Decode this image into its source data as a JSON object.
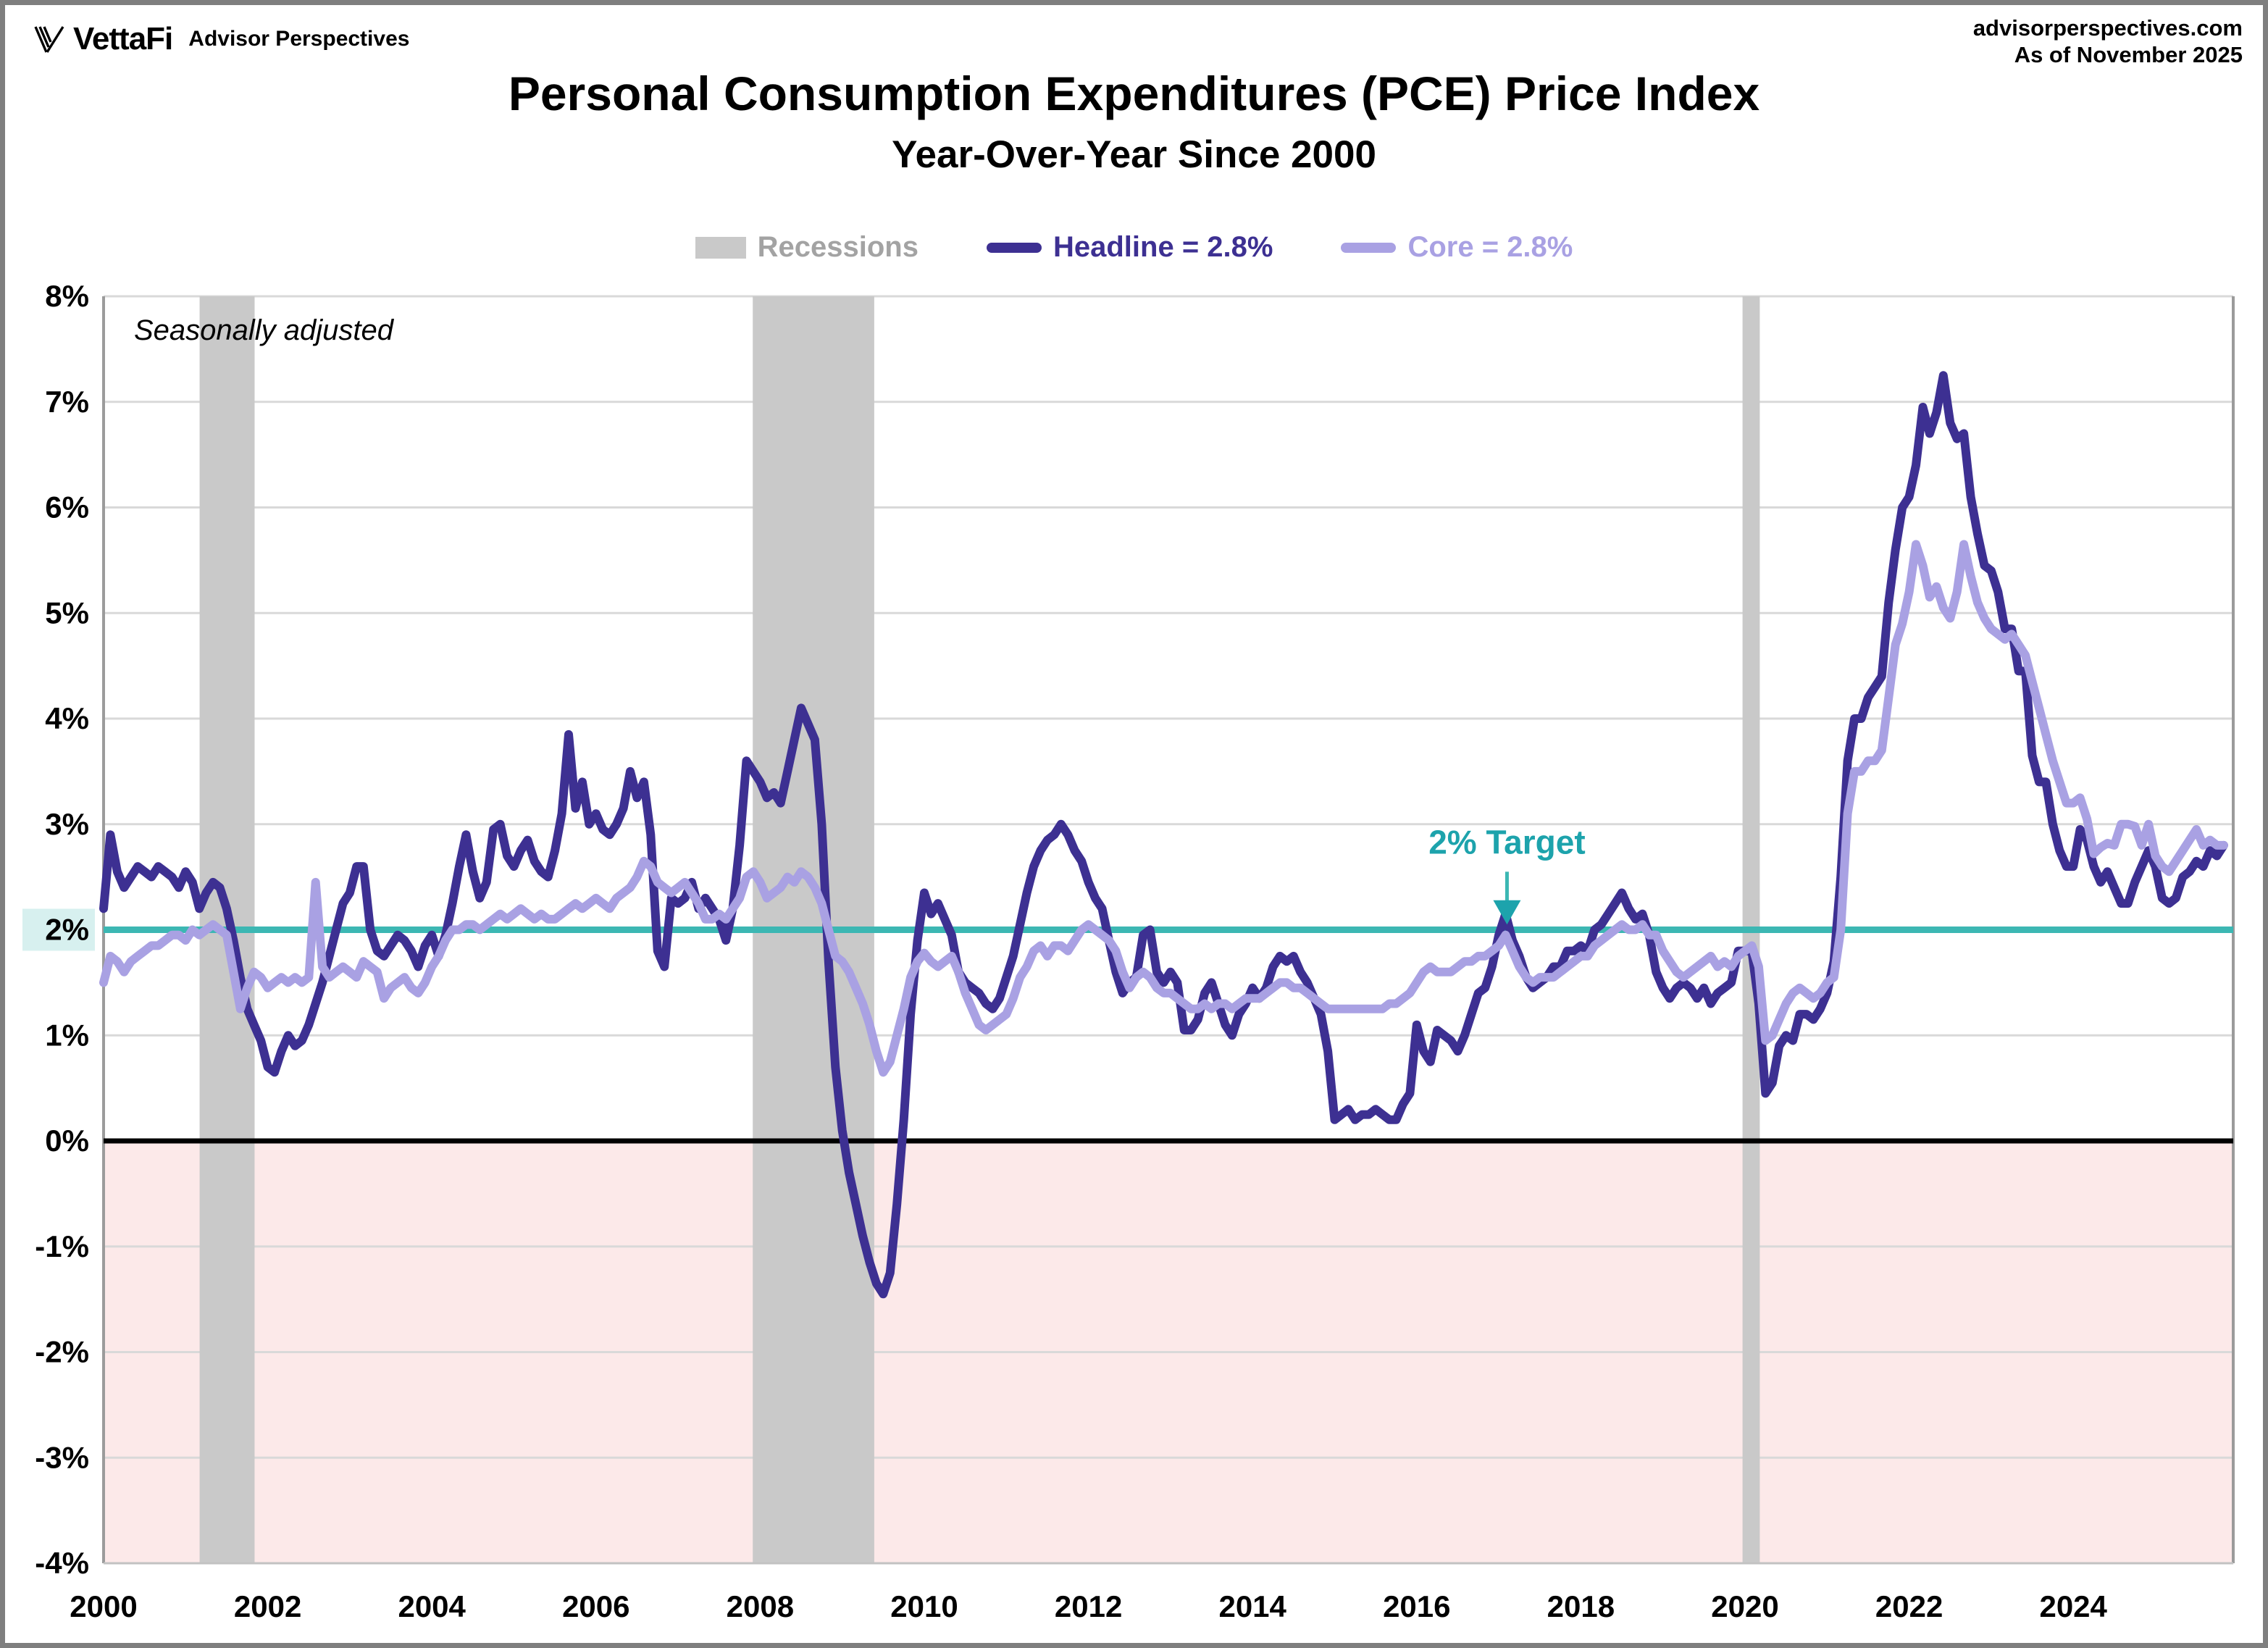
{
  "header": {
    "logo": "VettaFi",
    "logo_sub": "Advisor Perspectives",
    "site": "advisorperspectives.com",
    "as_of": "As of November 2025"
  },
  "title": "Personal Consumption Expenditures (PCE) Price Index",
  "subtitle": "Year-Over-Year Since 2000",
  "legend": {
    "recessions_label": "Recessions",
    "headline_label": "Headline = 2.8%",
    "core_label": "Core = 2.8%"
  },
  "annotations": {
    "seasonally_adjusted": "Seasonally adjusted",
    "target_label": "2% Target"
  },
  "colors": {
    "headline": "#3D3092",
    "core": "#A9A1E3",
    "target_line": "#3CB7B3",
    "target_text": "#1DA3AC",
    "target_label_bg": "#D7F0EF",
    "recession_band": "#C9C9C9",
    "recessions_text": "#A3A3A3",
    "below_zero_fill": "#FCE9E9",
    "gridline": "#D9D9D9",
    "axis_border": "#9B9B9B",
    "zero_line": "#000000"
  },
  "chart_data": {
    "type": "line",
    "title": "Personal Consumption Expenditures (PCE) Price Index",
    "subtitle": "Year-Over-Year Since 2000",
    "x_start_year": 2000,
    "x_end_label": "November 2025",
    "months_total": 311,
    "ylim": [
      -4,
      8
    ],
    "grid": "horizontal-only",
    "x_ticks": [
      2000,
      2002,
      2004,
      2006,
      2008,
      2010,
      2012,
      2014,
      2016,
      2018,
      2020,
      2022,
      2024
    ],
    "y_tick_values": [
      8,
      7,
      6,
      5,
      4,
      3,
      2,
      1,
      0,
      -1,
      -2,
      -3,
      -4
    ],
    "y_tick_labels": [
      "8%",
      "7%",
      "6%",
      "5%",
      "4%",
      "3%",
      "2%",
      "1%",
      "0%",
      "-1%",
      "-2%",
      "-3%",
      "-4%"
    ],
    "target_line": {
      "value": 2,
      "label": "2% Target",
      "annotation_year": 2017.1
    },
    "recessions": [
      {
        "start": 2001.17,
        "end": 2001.84
      },
      {
        "start": 2007.91,
        "end": 2009.39
      },
      {
        "start": 2019.97,
        "end": 2020.18
      }
    ],
    "series": [
      {
        "name": "Headline",
        "legend_label": "Headline = 2.8%",
        "latest_value": 2.8,
        "color": "#3D3092",
        "monthly_by_year": [
          [
            2.2,
            2.9,
            2.55,
            2.4,
            2.5,
            2.6,
            2.55,
            2.5,
            2.6,
            2.55,
            2.5,
            2.4
          ],
          [
            2.55,
            2.45,
            2.2,
            2.35,
            2.45,
            2.4,
            2.2,
            1.9,
            1.55,
            1.25,
            1.1,
            0.95
          ],
          [
            0.7,
            0.65,
            0.85,
            1.0,
            0.9,
            0.95,
            1.1,
            1.3,
            1.5,
            1.75,
            2.0,
            2.25
          ],
          [
            2.35,
            2.6,
            2.6,
            2.0,
            1.8,
            1.75,
            1.85,
            1.95,
            1.9,
            1.8,
            1.65,
            1.85
          ],
          [
            1.95,
            1.75,
            1.95,
            2.25,
            2.6,
            2.9,
            2.55,
            2.3,
            2.45,
            2.95,
            3.0,
            2.7
          ],
          [
            2.6,
            2.75,
            2.85,
            2.65,
            2.55,
            2.5,
            2.75,
            3.1,
            3.85,
            3.15,
            3.4,
            3.0
          ],
          [
            3.1,
            2.95,
            2.9,
            3.0,
            3.15,
            3.5,
            3.25,
            3.4,
            2.9,
            1.8,
            1.65,
            2.3
          ],
          [
            2.25,
            2.3,
            2.45,
            2.2,
            2.3,
            2.2,
            2.1,
            1.9,
            2.2,
            2.8,
            3.6,
            3.5
          ],
          [
            3.4,
            3.25,
            3.3,
            3.2,
            3.5,
            3.8,
            4.1,
            3.95,
            3.8,
            3.0,
            1.7,
            0.7
          ],
          [
            0.1,
            -0.3,
            -0.6,
            -0.9,
            -1.15,
            -1.35,
            -1.45,
            -1.25,
            -0.6,
            0.2,
            1.2,
            1.9
          ],
          [
            2.35,
            2.15,
            2.25,
            2.1,
            1.95,
            1.6,
            1.5,
            1.45,
            1.4,
            1.3,
            1.25,
            1.35
          ],
          [
            1.55,
            1.75,
            2.05,
            2.35,
            2.6,
            2.75,
            2.85,
            2.9,
            3.0,
            2.9,
            2.75,
            2.65
          ],
          [
            2.45,
            2.3,
            2.2,
            1.9,
            1.6,
            1.4,
            1.5,
            1.55,
            1.95,
            2.0,
            1.6,
            1.5
          ],
          [
            1.6,
            1.5,
            1.05,
            1.05,
            1.15,
            1.4,
            1.5,
            1.3,
            1.1,
            1.0,
            1.2,
            1.3
          ],
          [
            1.45,
            1.35,
            1.45,
            1.65,
            1.75,
            1.7,
            1.75,
            1.6,
            1.5,
            1.35,
            1.2,
            0.85
          ],
          [
            0.2,
            0.25,
            0.3,
            0.2,
            0.25,
            0.25,
            0.3,
            0.25,
            0.2,
            0.2,
            0.35,
            0.45
          ],
          [
            1.1,
            0.85,
            0.75,
            1.05,
            1.0,
            0.95,
            0.85,
            1.0,
            1.2,
            1.4,
            1.45,
            1.65
          ],
          [
            1.95,
            2.15,
            1.9,
            1.75,
            1.55,
            1.45,
            1.5,
            1.55,
            1.65,
            1.65,
            1.8,
            1.8
          ],
          [
            1.85,
            1.8,
            2.0,
            2.05,
            2.15,
            2.25,
            2.35,
            2.2,
            2.1,
            2.15,
            1.95,
            1.6
          ],
          [
            1.45,
            1.35,
            1.45,
            1.5,
            1.45,
            1.35,
            1.45,
            1.3,
            1.4,
            1.45,
            1.5,
            1.8
          ],
          [
            1.8,
            1.8,
            1.3,
            0.45,
            0.55,
            0.9,
            1.0,
            0.95,
            1.2,
            1.2,
            1.15,
            1.25
          ],
          [
            1.4,
            1.7,
            2.5,
            3.6,
            4.0,
            4.0,
            4.2,
            4.3,
            4.4,
            5.1,
            5.6,
            6.0
          ],
          [
            6.1,
            6.4,
            6.95,
            6.7,
            6.9,
            7.25,
            6.8,
            6.65,
            6.7,
            6.1,
            5.75,
            5.45
          ],
          [
            5.4,
            5.2,
            4.85,
            4.85,
            4.45,
            4.45,
            3.65,
            3.4,
            3.4,
            3.0,
            2.75,
            2.6
          ],
          [
            2.6,
            2.95,
            2.85,
            2.6,
            2.45,
            2.55,
            2.4,
            2.25,
            2.25,
            2.45,
            2.6,
            2.75
          ],
          [
            2.6,
            2.3,
            2.25,
            2.3,
            2.5,
            2.55,
            2.65,
            2.6,
            2.75,
            2.7,
            2.8
          ]
        ]
      },
      {
        "name": "Core",
        "legend_label": "Core = 2.8%",
        "latest_value": 2.8,
        "color": "#A9A1E3",
        "monthly_by_year": [
          [
            1.5,
            1.75,
            1.7,
            1.6,
            1.7,
            1.75,
            1.8,
            1.85,
            1.85,
            1.9,
            1.95,
            1.95
          ],
          [
            1.9,
            2.0,
            1.95,
            2.0,
            2.05,
            2.0,
            1.95,
            1.6,
            1.25,
            1.45,
            1.6,
            1.55
          ],
          [
            1.45,
            1.5,
            1.55,
            1.5,
            1.55,
            1.5,
            1.55,
            2.45,
            1.65,
            1.55,
            1.6,
            1.65
          ],
          [
            1.6,
            1.55,
            1.7,
            1.65,
            1.6,
            1.35,
            1.45,
            1.5,
            1.55,
            1.45,
            1.4,
            1.5
          ],
          [
            1.65,
            1.75,
            1.9,
            2.0,
            2.0,
            2.05,
            2.05,
            2.0,
            2.05,
            2.1,
            2.15,
            2.1
          ],
          [
            2.15,
            2.2,
            2.15,
            2.1,
            2.15,
            2.1,
            2.1,
            2.15,
            2.2,
            2.25,
            2.2,
            2.25
          ],
          [
            2.3,
            2.25,
            2.2,
            2.3,
            2.35,
            2.4,
            2.5,
            2.65,
            2.6,
            2.45,
            2.4,
            2.35
          ],
          [
            2.4,
            2.45,
            2.35,
            2.25,
            2.1,
            2.1,
            2.15,
            2.1,
            2.2,
            2.3,
            2.5,
            2.55
          ],
          [
            2.45,
            2.3,
            2.35,
            2.4,
            2.5,
            2.45,
            2.55,
            2.5,
            2.4,
            2.25,
            2.0,
            1.75
          ],
          [
            1.7,
            1.6,
            1.45,
            1.3,
            1.1,
            0.85,
            0.65,
            0.75,
            1.0,
            1.25,
            1.55,
            1.7
          ],
          [
            1.78,
            1.7,
            1.65,
            1.7,
            1.75,
            1.6,
            1.4,
            1.25,
            1.1,
            1.05,
            1.1,
            1.15
          ],
          [
            1.2,
            1.35,
            1.55,
            1.65,
            1.8,
            1.85,
            1.75,
            1.85,
            1.85,
            1.8,
            1.9,
            2.0
          ],
          [
            2.05,
            2.0,
            1.95,
            1.9,
            1.8,
            1.6,
            1.45,
            1.55,
            1.6,
            1.55,
            1.45,
            1.4
          ],
          [
            1.4,
            1.35,
            1.3,
            1.25,
            1.25,
            1.3,
            1.25,
            1.3,
            1.3,
            1.25,
            1.3,
            1.35
          ],
          [
            1.35,
            1.35,
            1.4,
            1.45,
            1.5,
            1.5,
            1.45,
            1.45,
            1.4,
            1.35,
            1.3,
            1.25
          ],
          [
            1.25,
            1.25,
            1.25,
            1.25,
            1.25,
            1.25,
            1.25,
            1.25,
            1.3,
            1.3,
            1.35,
            1.4
          ],
          [
            1.5,
            1.6,
            1.65,
            1.6,
            1.6,
            1.6,
            1.65,
            1.7,
            1.7,
            1.75,
            1.75,
            1.8
          ],
          [
            1.85,
            1.95,
            1.8,
            1.65,
            1.55,
            1.5,
            1.55,
            1.55,
            1.55,
            1.6,
            1.65,
            1.7
          ],
          [
            1.75,
            1.75,
            1.85,
            1.9,
            1.95,
            2.0,
            2.05,
            2.0,
            2.0,
            2.05,
            1.95,
            1.95
          ],
          [
            1.8,
            1.7,
            1.6,
            1.55,
            1.6,
            1.65,
            1.7,
            1.75,
            1.65,
            1.7,
            1.65,
            1.75
          ],
          [
            1.8,
            1.85,
            1.65,
            0.95,
            1.0,
            1.15,
            1.3,
            1.4,
            1.45,
            1.4,
            1.35,
            1.4
          ],
          [
            1.5,
            1.55,
            2.0,
            3.1,
            3.5,
            3.5,
            3.6,
            3.6,
            3.7,
            4.2,
            4.7,
            4.9
          ],
          [
            5.2,
            5.65,
            5.45,
            5.15,
            5.25,
            5.05,
            4.95,
            5.2,
            5.65,
            5.35,
            5.1,
            4.95
          ],
          [
            4.85,
            4.8,
            4.75,
            4.8,
            4.7,
            4.6,
            4.35,
            4.1,
            3.85,
            3.6,
            3.4,
            3.2
          ],
          [
            3.2,
            3.25,
            3.05,
            2.72,
            2.78,
            2.82,
            2.8,
            3.0,
            3.0,
            2.98,
            2.8,
            3.0
          ],
          [
            2.7,
            2.6,
            2.55,
            2.65,
            2.75,
            2.85,
            2.95,
            2.8,
            2.85,
            2.8,
            2.8
          ]
        ]
      }
    ]
  }
}
